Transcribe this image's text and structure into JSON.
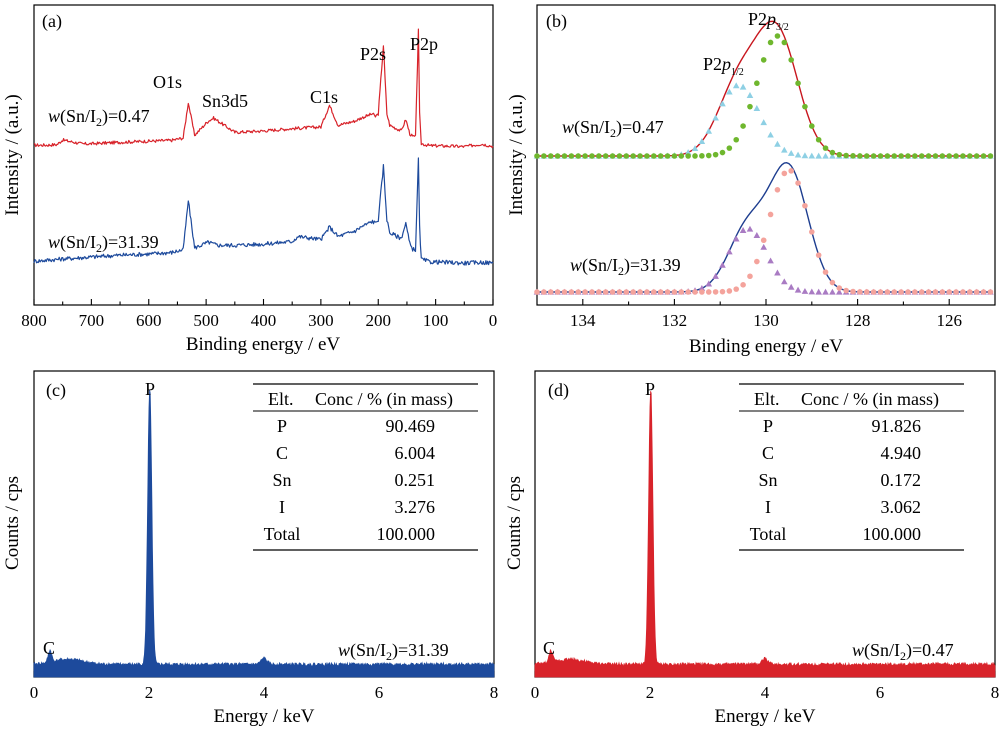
{
  "colors": {
    "red": "#d8232a",
    "blue": "#1d4a9c",
    "green": "#6fb72e",
    "cyan": "#8ed0e4",
    "pink": "#f4a39c",
    "violet": "#a97bc3",
    "dark_blue": "#1d3d8f",
    "dark_red": "#c8161e"
  },
  "chart_data": [
    {
      "panel": "a",
      "label": "(a)",
      "type": "line",
      "xlabel": "Binding energy / eV",
      "ylabel": "Intensity / (a.u.)",
      "xlim": [
        800,
        0
      ],
      "reverse_x": true,
      "ticks": [
        "800",
        "700",
        "600",
        "500",
        "400",
        "300",
        "200",
        "100",
        "0"
      ],
      "series": [
        {
          "name": "w(Sn/I2)=0.47",
          "color": "#d8232a",
          "x": [
            800,
            780,
            760,
            750,
            715,
            700,
            650,
            600,
            560,
            540,
            531,
            520,
            496,
            487,
            450,
            400,
            350,
            300,
            285,
            270,
            240,
            230,
            210,
            205,
            200,
            191,
            185,
            180,
            160,
            152,
            145,
            140,
            135,
            130,
            128,
            125,
            110,
            100,
            50,
            20,
            0
          ],
          "y": [
            1.0,
            1.0,
            1.2,
            2.8,
            1.4,
            1.5,
            2.0,
            2.4,
            2.7,
            3.5,
            16.0,
            4.5,
            9.5,
            10.5,
            5.5,
            6.0,
            6.8,
            7.4,
            15.0,
            8.0,
            9.5,
            10.5,
            12.0,
            11.0,
            12.0,
            36.0,
            12.0,
            8.0,
            6.0,
            10.0,
            5.0,
            4.0,
            4.0,
            42.0,
            12.0,
            1.5,
            0.8,
            0.8,
            0.5,
            1.4,
            0.6
          ]
        },
        {
          "name": "w(Sn/I2)=31.39",
          "color": "#1d4a9c",
          "x": [
            800,
            750,
            700,
            650,
            600,
            560,
            540,
            531,
            520,
            496,
            480,
            450,
            400,
            350,
            340,
            300,
            285,
            270,
            240,
            230,
            210,
            205,
            200,
            191,
            185,
            180,
            160,
            152,
            145,
            140,
            135,
            130,
            128,
            125,
            110,
            100,
            50,
            20,
            0
          ],
          "y": [
            1.0,
            1.6,
            2.1,
            2.6,
            2.9,
            3.3,
            4.0,
            17.0,
            4.5,
            6.0,
            5.2,
            5.2,
            5.5,
            6.2,
            7.5,
            6.7,
            10.0,
            7.5,
            9.0,
            10.0,
            11.5,
            11.0,
            12.0,
            26.0,
            12.0,
            8.5,
            7.0,
            11.0,
            5.5,
            4.2,
            4.0,
            28.0,
            10.0,
            1.5,
            0.8,
            0.8,
            0.5,
            0.7,
            0.5
          ]
        }
      ],
      "annotations": [
        "O1s",
        "Sn3d5",
        "C1s",
        "P2s",
        "P2p"
      ]
    },
    {
      "panel": "b",
      "label": "(b)",
      "type": "line",
      "xlabel": "Binding energy / eV",
      "ylabel": "Intensity / (a.u.)",
      "xlim": [
        135,
        125
      ],
      "reverse_x": true,
      "ticks": [
        "134",
        "132",
        "130",
        "128",
        "126"
      ],
      "series": [
        {
          "name": "w(Sn/I2)=0.47",
          "group": "top",
          "peaks": [
            {
              "label": "P2p1/2",
              "center": 130.6,
              "amplitude": 0.59,
              "width": 0.45,
              "color": "#8ed0e4"
            },
            {
              "label": "P2p3/2",
              "center": 129.75,
              "amplitude": 1.0,
              "width": 0.45,
              "color": "#6fb72e"
            }
          ],
          "envelope_color": "#c8161e"
        },
        {
          "name": "w(Sn/I2)=31.39",
          "group": "bottom",
          "peaks": [
            {
              "label": "P2p1/2",
              "center": 130.4,
              "amplitude": 0.52,
              "width": 0.42,
              "color": "#a97bc3"
            },
            {
              "label": "P2p3/2",
              "center": 129.5,
              "amplitude": 1.0,
              "width": 0.42,
              "color": "#f4a39c"
            }
          ],
          "envelope_color": "#1d3d8f"
        }
      ]
    },
    {
      "panel": "c",
      "label": "(c)",
      "type": "area",
      "xlabel": "Energy / keV",
      "ylabel": "Counts / cps",
      "xlim": [
        0,
        8
      ],
      "ticks": [
        "0",
        "2",
        "4",
        "6",
        "8"
      ],
      "color": "#1d4a9c",
      "peaks": [
        {
          "label": "C",
          "x": 0.277
        },
        {
          "label": "P",
          "x": 2.013
        }
      ],
      "sample": "w(Sn/I2)=31.39",
      "table": {
        "headers": [
          "Elt.",
          "Conc / % (in mass)"
        ],
        "rows": [
          [
            "P",
            "90.469"
          ],
          [
            "C",
            "6.004"
          ],
          [
            "Sn",
            "0.251"
          ],
          [
            "I",
            "3.276"
          ],
          [
            "Total",
            "100.000"
          ]
        ]
      }
    },
    {
      "panel": "d",
      "label": "(d)",
      "type": "area",
      "xlabel": "Energy / keV",
      "ylabel": "Counts / cps",
      "xlim": [
        0,
        8
      ],
      "ticks": [
        "0",
        "2",
        "4",
        "6",
        "8"
      ],
      "color": "#d8232a",
      "peaks": [
        {
          "label": "C",
          "x": 0.277
        },
        {
          "label": "P",
          "x": 2.013
        }
      ],
      "sample": "w(Sn/I2)=0.47",
      "table": {
        "headers": [
          "Elt.",
          "Conc / % (in mass)"
        ],
        "rows": [
          [
            "P",
            "91.826"
          ],
          [
            "C",
            "4.940"
          ],
          [
            "Sn",
            "0.172"
          ],
          [
            "I",
            "3.062"
          ],
          [
            "Total",
            "100.000"
          ]
        ]
      }
    }
  ]
}
